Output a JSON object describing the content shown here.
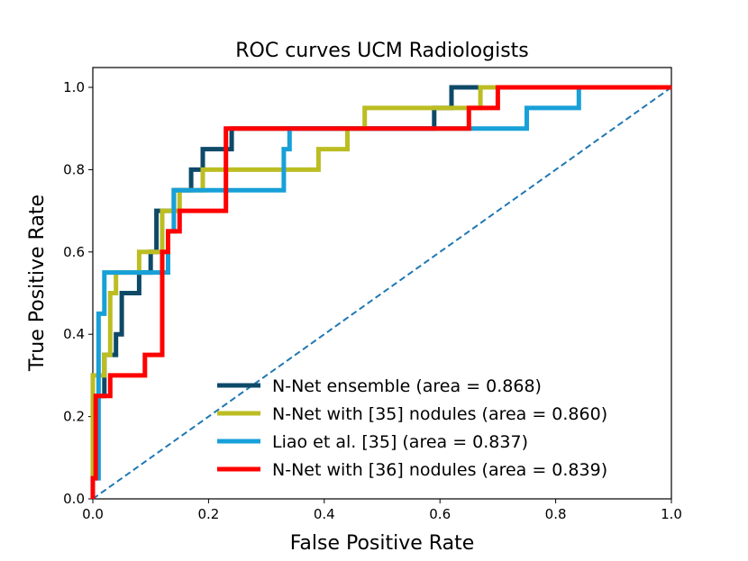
{
  "chart_data": {
    "type": "line",
    "title": "ROC curves UCM Radiologists",
    "xlabel": "False Positive Rate",
    "ylabel": "True Positive Rate",
    "xlim": [
      0.0,
      1.0
    ],
    "ylim": [
      0.0,
      1.0
    ],
    "xticks": [
      "0.0",
      "0.2",
      "0.4",
      "0.6",
      "0.8",
      "1.0"
    ],
    "yticks": [
      "0.0",
      "0.2",
      "0.4",
      "0.6",
      "0.8",
      "1.0"
    ],
    "grid": false,
    "legend_position": "lower-right",
    "series": [
      {
        "name": "N-Net ensemble (area = 0.868)",
        "color": "#0e4a68",
        "points": [
          [
            0,
            0
          ],
          [
            0,
            0.25
          ],
          [
            0.02,
            0.25
          ],
          [
            0.02,
            0.35
          ],
          [
            0.04,
            0.35
          ],
          [
            0.04,
            0.4
          ],
          [
            0.05,
            0.4
          ],
          [
            0.05,
            0.5
          ],
          [
            0.08,
            0.5
          ],
          [
            0.08,
            0.55
          ],
          [
            0.1,
            0.55
          ],
          [
            0.1,
            0.6
          ],
          [
            0.11,
            0.6
          ],
          [
            0.11,
            0.7
          ],
          [
            0.14,
            0.7
          ],
          [
            0.14,
            0.75
          ],
          [
            0.17,
            0.75
          ],
          [
            0.17,
            0.8
          ],
          [
            0.19,
            0.8
          ],
          [
            0.19,
            0.85
          ],
          [
            0.24,
            0.85
          ],
          [
            0.24,
            0.9
          ],
          [
            0.59,
            0.9
          ],
          [
            0.59,
            0.95
          ],
          [
            0.62,
            0.95
          ],
          [
            0.62,
            1.0
          ],
          [
            1.0,
            1.0
          ]
        ]
      },
      {
        "name": "N-Net with [35] nodules (area = 0.860)",
        "color": "#bcbd22",
        "points": [
          [
            0,
            0
          ],
          [
            0,
            0.3
          ],
          [
            0.02,
            0.3
          ],
          [
            0.02,
            0.35
          ],
          [
            0.03,
            0.35
          ],
          [
            0.03,
            0.5
          ],
          [
            0.04,
            0.5
          ],
          [
            0.04,
            0.55
          ],
          [
            0.08,
            0.55
          ],
          [
            0.08,
            0.6
          ],
          [
            0.12,
            0.6
          ],
          [
            0.12,
            0.7
          ],
          [
            0.15,
            0.7
          ],
          [
            0.15,
            0.75
          ],
          [
            0.19,
            0.75
          ],
          [
            0.19,
            0.8
          ],
          [
            0.39,
            0.8
          ],
          [
            0.39,
            0.85
          ],
          [
            0.44,
            0.85
          ],
          [
            0.44,
            0.9
          ],
          [
            0.47,
            0.9
          ],
          [
            0.47,
            0.95
          ],
          [
            0.67,
            0.95
          ],
          [
            0.67,
            1.0
          ],
          [
            1.0,
            1.0
          ]
        ]
      },
      {
        "name": "Liao et al. [35] (area = 0.837)",
        "color": "#18a0d8",
        "points": [
          [
            0,
            0
          ],
          [
            0,
            0.05
          ],
          [
            0.01,
            0.05
          ],
          [
            0.01,
            0.45
          ],
          [
            0.02,
            0.45
          ],
          [
            0.02,
            0.55
          ],
          [
            0.13,
            0.55
          ],
          [
            0.13,
            0.65
          ],
          [
            0.14,
            0.65
          ],
          [
            0.14,
            0.75
          ],
          [
            0.33,
            0.75
          ],
          [
            0.33,
            0.85
          ],
          [
            0.34,
            0.85
          ],
          [
            0.34,
            0.9
          ],
          [
            0.65,
            0.9
          ],
          [
            0.75,
            0.9
          ],
          [
            0.75,
            0.95
          ],
          [
            0.84,
            0.95
          ],
          [
            0.84,
            1.0
          ],
          [
            1.0,
            1.0
          ]
        ]
      },
      {
        "name": "N-Net with [36] nodules (area = 0.839)",
        "color": "#ff0000",
        "points": [
          [
            0,
            0
          ],
          [
            0,
            0.05
          ],
          [
            0.005,
            0.05
          ],
          [
            0.005,
            0.25
          ],
          [
            0.03,
            0.25
          ],
          [
            0.03,
            0.3
          ],
          [
            0.09,
            0.3
          ],
          [
            0.09,
            0.35
          ],
          [
            0.12,
            0.35
          ],
          [
            0.12,
            0.6
          ],
          [
            0.13,
            0.6
          ],
          [
            0.13,
            0.65
          ],
          [
            0.15,
            0.65
          ],
          [
            0.15,
            0.7
          ],
          [
            0.23,
            0.7
          ],
          [
            0.23,
            0.9
          ],
          [
            0.65,
            0.9
          ],
          [
            0.65,
            0.95
          ],
          [
            0.7,
            0.95
          ],
          [
            0.7,
            1.0
          ],
          [
            1.0,
            1.0
          ]
        ]
      }
    ],
    "reference_line": {
      "color": "#1f77b4",
      "points": [
        [
          0,
          0
        ],
        [
          1,
          1
        ]
      ]
    }
  }
}
